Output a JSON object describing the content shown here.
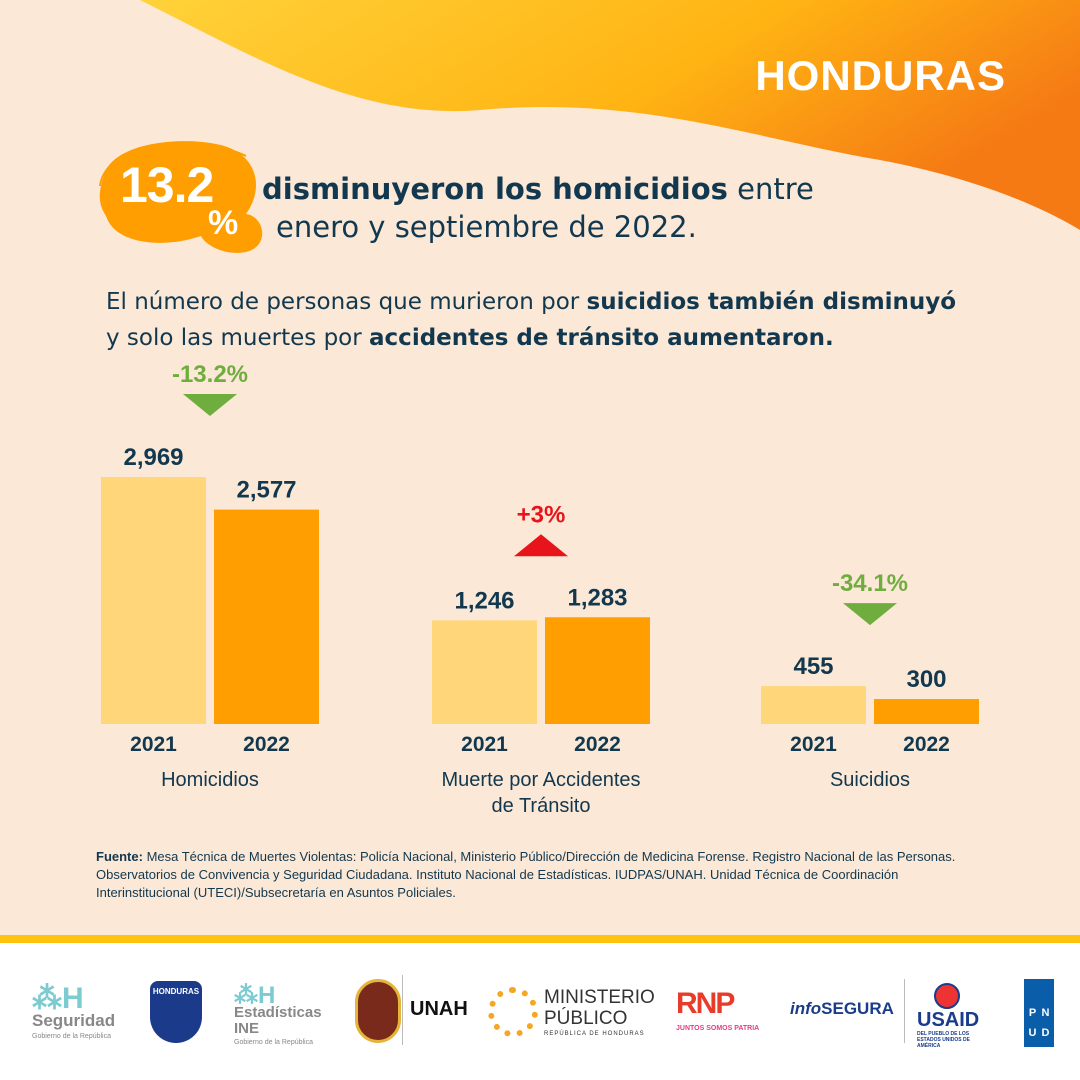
{
  "header": {
    "country": "HONDURAS"
  },
  "highlight": {
    "value": "13.2",
    "unit": "%",
    "text_bold": "disminuyeron los homicidios",
    "text_rest1": " entre",
    "text_line2": "enero y septiembre de 2022."
  },
  "subtitle": {
    "part1": "El número de personas que murieron por ",
    "bold1": "suicidios también disminuyó",
    "part2": "y solo las muertes por ",
    "bold2": "accidentes de tránsito aumentaron."
  },
  "colors": {
    "y2021": "#FFD77A",
    "y2022": "#FF9E00",
    "down": "#6FAE3E",
    "up": "#E8141B",
    "text": "#12384F"
  },
  "chart_data": {
    "type": "bar",
    "categories": [
      "Homicidios",
      "Muerte por Accidentes de Tránsito",
      "Suicidios"
    ],
    "category_lines": [
      [
        "Homicidios"
      ],
      [
        "Muerte por Accidentes",
        "de Tránsito"
      ],
      [
        "Suicidios"
      ]
    ],
    "x_tick_labels": [
      "2021",
      "2022"
    ],
    "series": [
      {
        "name": "2021",
        "values": [
          2969,
          1246,
          455
        ],
        "labels": [
          "2,969",
          "1,246",
          "455"
        ]
      },
      {
        "name": "2022",
        "values": [
          2577,
          1283,
          300
        ],
        "labels": [
          "2,577",
          "1,283",
          "300"
        ]
      }
    ],
    "changes": [
      {
        "label": "-13.2%",
        "direction": "down"
      },
      {
        "label": "+3%",
        "direction": "up"
      },
      {
        "label": "-34.1%",
        "direction": "down"
      }
    ],
    "title": "",
    "xlabel": "",
    "ylabel": "",
    "ylim": [
      0,
      2969
    ],
    "grid": false
  },
  "source": {
    "label": "Fuente:",
    "text": " Mesa Técnica de Muertes Violentas: Policía Nacional, Ministerio Público/Dirección de Medicina Forense. Registro Nacional de las Personas. Observatorios de Convivencia y Seguridad Ciudadana. Instituto Nacional de Estadísticas. IUDPAS/UNAH. Unidad Técnica de Coordinación Interinstitucional (UTECI)/Subsecretaría en Asuntos Policiales."
  },
  "logos": {
    "seguridad": {
      "name": "Seguridad",
      "sub": "Gobierno de la República"
    },
    "policia": "HONDURAS",
    "ine": {
      "name": "Estadísticas",
      "name2": "INE",
      "sub": "Gobierno de la República"
    },
    "unah": "UNAH",
    "mp": {
      "line1": "MINISTERIO",
      "line2": "PÚBLICO",
      "sub": "REPÚBLICA DE HONDURAS"
    },
    "rnp": {
      "name": "RNP",
      "sub": "JUNTOS SOMOS PATRIA"
    },
    "infosegura": {
      "a": "info",
      "b": "SEGURA"
    },
    "usaid": {
      "name": "USAID",
      "sub": "DEL PUEBLO DE LOS ESTADOS UNIDOS DE AMÉRICA"
    },
    "pnud": [
      "P",
      "N",
      "U",
      "D"
    ]
  }
}
